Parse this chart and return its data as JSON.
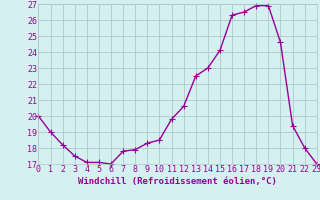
{
  "x": [
    0,
    1,
    2,
    3,
    4,
    5,
    6,
    7,
    8,
    9,
    10,
    11,
    12,
    13,
    14,
    15,
    16,
    17,
    18,
    19,
    20,
    21,
    22,
    23
  ],
  "y": [
    20,
    19,
    18.2,
    17.5,
    17.1,
    17.1,
    17.0,
    17.8,
    17.9,
    18.3,
    18.5,
    19.8,
    20.6,
    22.5,
    23.0,
    24.1,
    26.3,
    26.5,
    26.9,
    26.9,
    24.6,
    19.4,
    18.0,
    17.0
  ],
  "line_color": "#990099",
  "marker": "+",
  "markersize": 4,
  "linewidth": 1.0,
  "background_color": "#d4f0f0",
  "grid_color": "#b0c8c8",
  "xlabel": "Windchill (Refroidissement éolien,°C)",
  "xlabel_fontsize": 6.5,
  "tick_fontsize": 6,
  "ylim": [
    17,
    27
  ],
  "xlim": [
    0,
    23
  ],
  "yticks": [
    17,
    18,
    19,
    20,
    21,
    22,
    23,
    24,
    25,
    26,
    27
  ],
  "xticks": [
    0,
    1,
    2,
    3,
    4,
    5,
    6,
    7,
    8,
    9,
    10,
    11,
    12,
    13,
    14,
    15,
    16,
    17,
    18,
    19,
    20,
    21,
    22,
    23
  ]
}
